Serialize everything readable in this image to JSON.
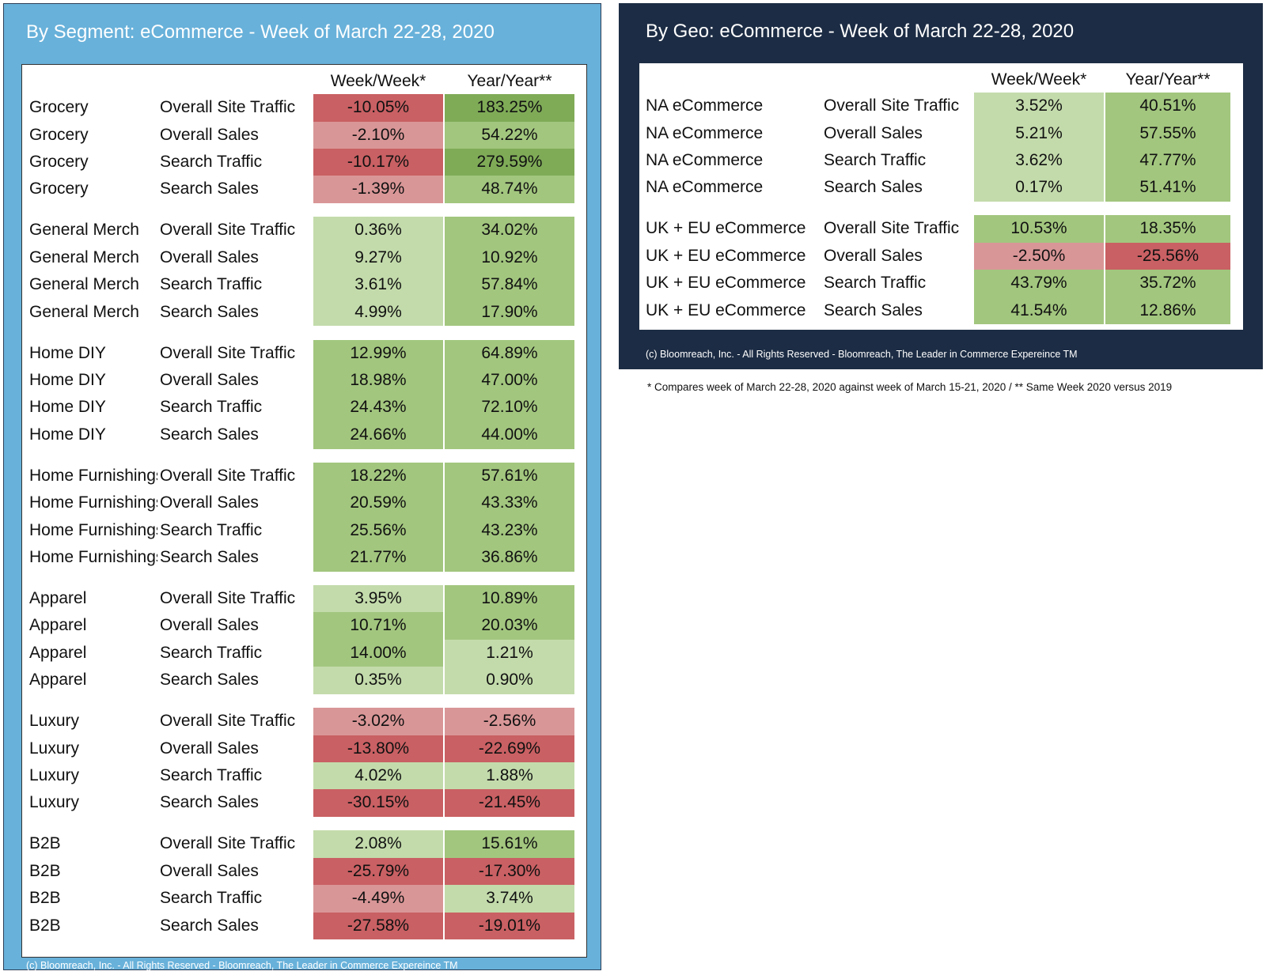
{
  "colors": {
    "strong_green": "#7fab57",
    "green": "#a2c67e",
    "light_green": "#c3dbab",
    "light_red": "#d99697",
    "red": "#c96063",
    "segment_panel_bg": "#68b1da",
    "geo_panel_bg": "#1c2c44"
  },
  "segment_panel": {
    "title": "By Segment: eCommerce - Week of March 22-28, 2020",
    "col_week": "Week/Week*",
    "col_year": "Year/Year**",
    "footer": "(c) Bloomreach, Inc. - All Rights Reserved - Bloomreach, The Leader in Commerce Expereince TM"
  },
  "geo_panel": {
    "title": "By Geo: eCommerce - Week of March 22-28, 2020",
    "col_week": "Week/Week*",
    "col_year": "Year/Year**",
    "footer": "(c) Bloomreach, Inc. - All Rights Reserved - Bloomreach, The Leader in Commerce Expereince TM"
  },
  "footnote": "* Compares week of March 22-28, 2020 against week of March 15-21, 2020 / ** Same Week 2020 versus 2019",
  "chart_data": [
    {
      "type": "table",
      "title": "By Segment: eCommerce - Week of March 22-28, 2020",
      "columns": [
        "Week/Week*",
        "Year/Year**"
      ],
      "groups": [
        {
          "name": "Grocery",
          "rows": [
            {
              "metric": "Overall Site Traffic",
              "week": "-10.05%",
              "year": "183.25%",
              "week_color": "red",
              "year_color": "strong_green"
            },
            {
              "metric": "Overall Sales",
              "week": "-2.10%",
              "year": "54.22%",
              "week_color": "light_red",
              "year_color": "green"
            },
            {
              "metric": "Search Traffic",
              "week": "-10.17%",
              "year": "279.59%",
              "week_color": "red",
              "year_color": "strong_green"
            },
            {
              "metric": "Search Sales",
              "week": "-1.39%",
              "year": "48.74%",
              "week_color": "light_red",
              "year_color": "green"
            }
          ]
        },
        {
          "name": "General Merch",
          "rows": [
            {
              "metric": "Overall Site Traffic",
              "week": "0.36%",
              "year": "34.02%",
              "week_color": "light_green",
              "year_color": "green"
            },
            {
              "metric": "Overall Sales",
              "week": "9.27%",
              "year": "10.92%",
              "week_color": "light_green",
              "year_color": "green"
            },
            {
              "metric": "Search Traffic",
              "week": "3.61%",
              "year": "57.84%",
              "week_color": "light_green",
              "year_color": "green"
            },
            {
              "metric": "Search Sales",
              "week": "4.99%",
              "year": "17.90%",
              "week_color": "light_green",
              "year_color": "green"
            }
          ]
        },
        {
          "name": "Home DIY",
          "rows": [
            {
              "metric": "Overall Site Traffic",
              "week": "12.99%",
              "year": "64.89%",
              "week_color": "green",
              "year_color": "green"
            },
            {
              "metric": "Overall Sales",
              "week": "18.98%",
              "year": "47.00%",
              "week_color": "green",
              "year_color": "green"
            },
            {
              "metric": "Search Traffic",
              "week": "24.43%",
              "year": "72.10%",
              "week_color": "green",
              "year_color": "green"
            },
            {
              "metric": "Search Sales",
              "week": "24.66%",
              "year": "44.00%",
              "week_color": "green",
              "year_color": "green"
            }
          ]
        },
        {
          "name": "Home Furnishings",
          "rows": [
            {
              "metric": "Overall Site Traffic",
              "week": "18.22%",
              "year": "57.61%",
              "week_color": "green",
              "year_color": "green"
            },
            {
              "metric": "Overall Sales",
              "week": "20.59%",
              "year": "43.33%",
              "week_color": "green",
              "year_color": "green"
            },
            {
              "metric": "Search Traffic",
              "week": "25.56%",
              "year": "43.23%",
              "week_color": "green",
              "year_color": "green"
            },
            {
              "metric": "Search Sales",
              "week": "21.77%",
              "year": "36.86%",
              "week_color": "green",
              "year_color": "green"
            }
          ]
        },
        {
          "name": "Apparel",
          "rows": [
            {
              "metric": "Overall Site Traffic",
              "week": "3.95%",
              "year": "10.89%",
              "week_color": "light_green",
              "year_color": "green"
            },
            {
              "metric": "Overall Sales",
              "week": "10.71%",
              "year": "20.03%",
              "week_color": "green",
              "year_color": "green"
            },
            {
              "metric": "Search Traffic",
              "week": "14.00%",
              "year": "1.21%",
              "week_color": "green",
              "year_color": "light_green"
            },
            {
              "metric": "Search Sales",
              "week": "0.35%",
              "year": "0.90%",
              "week_color": "light_green",
              "year_color": "light_green"
            }
          ]
        },
        {
          "name": "Luxury",
          "rows": [
            {
              "metric": "Overall Site Traffic",
              "week": "-3.02%",
              "year": "-2.56%",
              "week_color": "light_red",
              "year_color": "light_red"
            },
            {
              "metric": "Overall Sales",
              "week": "-13.80%",
              "year": "-22.69%",
              "week_color": "red",
              "year_color": "red"
            },
            {
              "metric": "Search Traffic",
              "week": "4.02%",
              "year": "1.88%",
              "week_color": "light_green",
              "year_color": "light_green"
            },
            {
              "metric": "Search Sales",
              "week": "-30.15%",
              "year": "-21.45%",
              "week_color": "red",
              "year_color": "red"
            }
          ]
        },
        {
          "name": "B2B",
          "rows": [
            {
              "metric": "Overall Site Traffic",
              "week": "2.08%",
              "year": "15.61%",
              "week_color": "light_green",
              "year_color": "green"
            },
            {
              "metric": "Overall Sales",
              "week": "-25.79%",
              "year": "-17.30%",
              "week_color": "red",
              "year_color": "red"
            },
            {
              "metric": "Search Traffic",
              "week": "-4.49%",
              "year": "3.74%",
              "week_color": "light_red",
              "year_color": "light_green"
            },
            {
              "metric": "Search Sales",
              "week": "-27.58%",
              "year": "-19.01%",
              "week_color": "red",
              "year_color": "red"
            }
          ]
        }
      ]
    },
    {
      "type": "table",
      "title": "By Geo: eCommerce - Week of March 22-28, 2020",
      "columns": [
        "Week/Week*",
        "Year/Year**"
      ],
      "groups": [
        {
          "name": "NA eCommerce",
          "rows": [
            {
              "metric": "Overall Site Traffic",
              "week": "3.52%",
              "year": "40.51%",
              "week_color": "light_green",
              "year_color": "green"
            },
            {
              "metric": "Overall Sales",
              "week": "5.21%",
              "year": "57.55%",
              "week_color": "light_green",
              "year_color": "green"
            },
            {
              "metric": "Search Traffic",
              "week": "3.62%",
              "year": "47.77%",
              "week_color": "light_green",
              "year_color": "green"
            },
            {
              "metric": "Search Sales",
              "week": "0.17%",
              "year": "51.41%",
              "week_color": "light_green",
              "year_color": "green"
            }
          ]
        },
        {
          "name": "UK + EU eCommerce",
          "rows": [
            {
              "metric": "Overall Site Traffic",
              "week": "10.53%",
              "year": "18.35%",
              "week_color": "green",
              "year_color": "green"
            },
            {
              "metric": "Overall Sales",
              "week": "-2.50%",
              "year": "-25.56%",
              "week_color": "light_red",
              "year_color": "red"
            },
            {
              "metric": "Search Traffic",
              "week": "43.79%",
              "year": "35.72%",
              "week_color": "green",
              "year_color": "green"
            },
            {
              "metric": "Search Sales",
              "week": "41.54%",
              "year": "12.86%",
              "week_color": "green",
              "year_color": "green"
            }
          ]
        }
      ]
    }
  ]
}
